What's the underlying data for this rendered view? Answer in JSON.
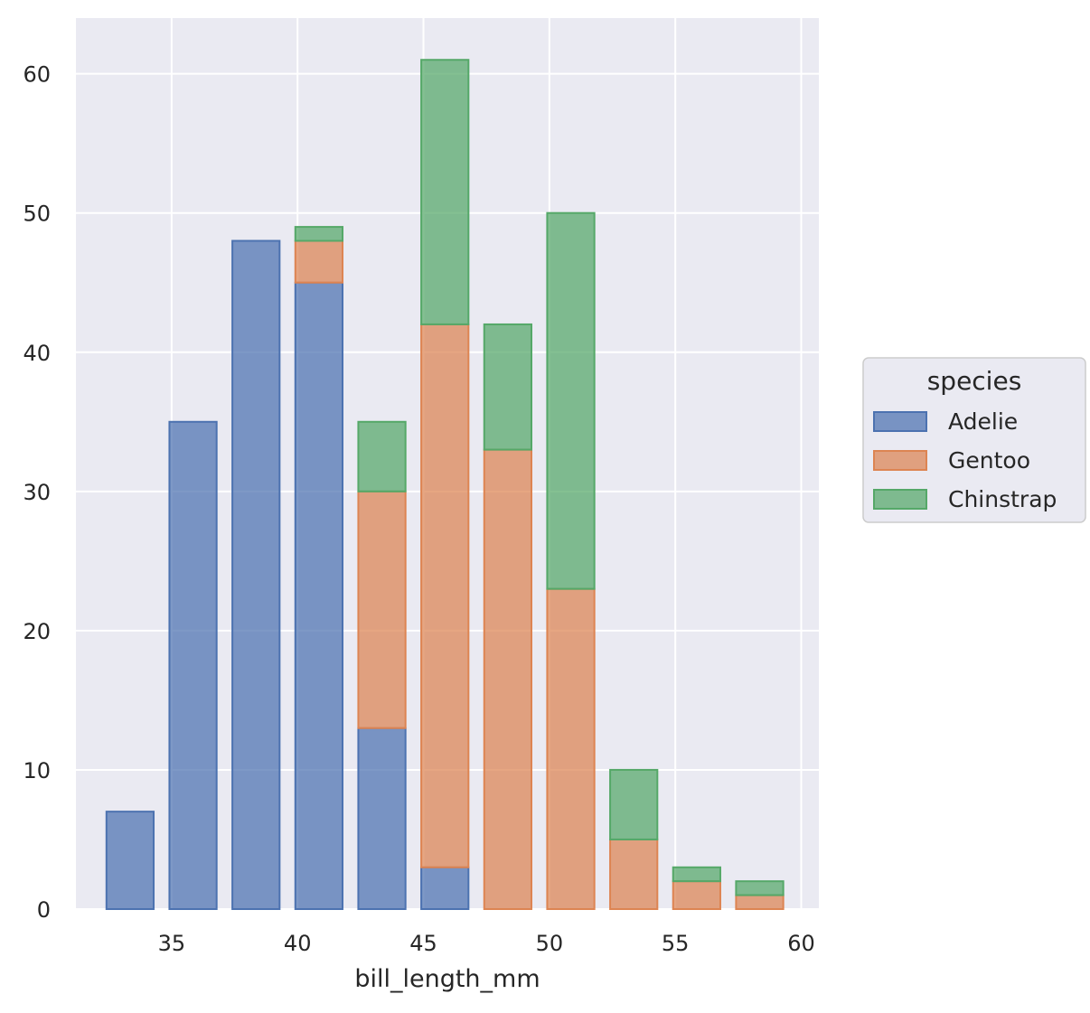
{
  "chart_data": {
    "type": "bar",
    "stacked": true,
    "xlabel": "bill_length_mm",
    "ylabel": "",
    "xlim": [
      31.2,
      60.7
    ],
    "ylim": [
      0,
      64
    ],
    "x_ticks": [
      35,
      40,
      45,
      50,
      55,
      60
    ],
    "y_ticks": [
      0,
      10,
      20,
      30,
      40,
      50,
      60
    ],
    "grid": true,
    "bin_edges": [
      32.1,
      34.6,
      37.1,
      39.6,
      42.1,
      44.6,
      47.1,
      49.6,
      52.1,
      54.6,
      57.1,
      59.6
    ],
    "shrink": 0.75,
    "series": [
      {
        "name": "Adelie",
        "color": "#4c72b0",
        "values": [
          7,
          35,
          48,
          45,
          13,
          3,
          0,
          0,
          0,
          0,
          0
        ]
      },
      {
        "name": "Gentoo",
        "color": "#dd8452",
        "values": [
          0,
          0,
          0,
          3,
          17,
          39,
          33,
          23,
          5,
          2,
          1
        ]
      },
      {
        "name": "Chinstrap",
        "color": "#55a868",
        "values": [
          0,
          0,
          0,
          1,
          5,
          19,
          9,
          27,
          5,
          1,
          1
        ]
      }
    ],
    "legend": {
      "title": "species",
      "placement": "right"
    }
  }
}
